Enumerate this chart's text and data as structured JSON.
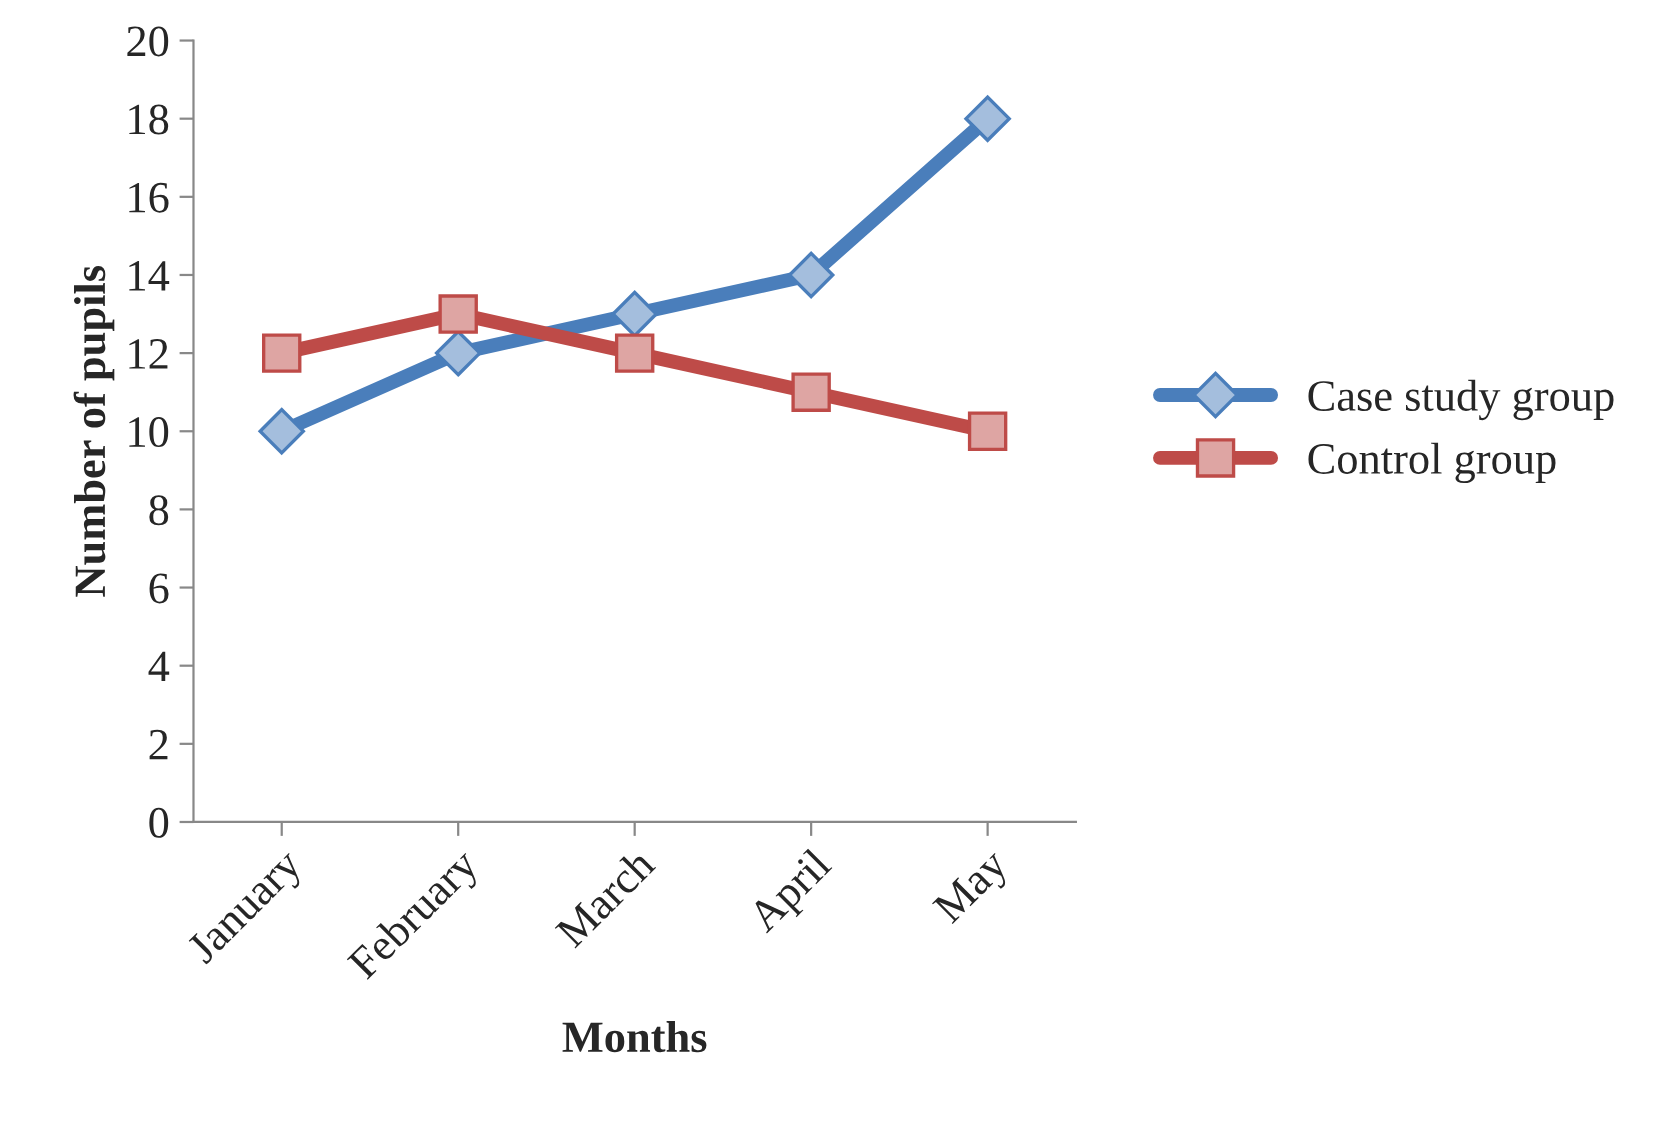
{
  "chart_data": {
    "type": "line",
    "xlabel": "Months",
    "ylabel": "Number of pupils",
    "categories": [
      "January",
      "February",
      "March",
      "April",
      "May"
    ],
    "series": [
      {
        "name": "Case study group",
        "color": "#4a7ebb",
        "values": [
          10,
          12,
          13,
          14,
          18
        ],
        "marker": "diamond"
      },
      {
        "name": "Control group",
        "color": "#be4b48",
        "values": [
          12,
          13,
          12,
          11,
          10
        ],
        "marker": "square"
      }
    ],
    "ylim": [
      0,
      20
    ],
    "yticks": [
      0,
      2,
      4,
      6,
      8,
      10,
      12,
      14,
      16,
      18,
      20
    ],
    "grid": false,
    "legend": "right",
    "line_style": "solid"
  }
}
